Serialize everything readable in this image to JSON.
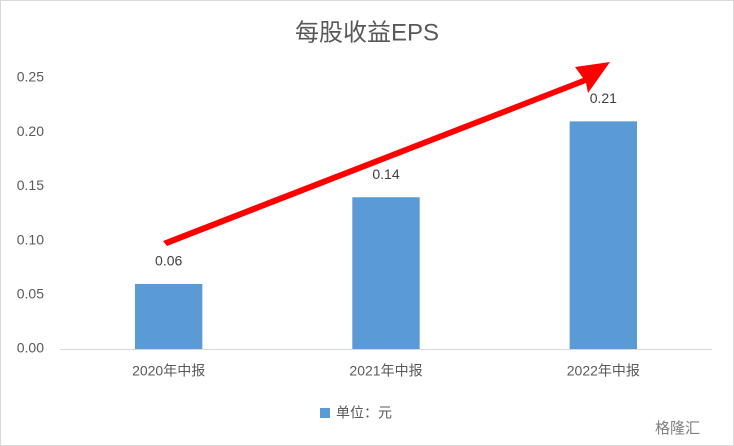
{
  "chart_data": {
    "type": "bar",
    "title": "每股收益EPS",
    "categories": [
      "2020年中报",
      "2021年中报",
      "2022年中报"
    ],
    "series": [
      {
        "name": "单位：元",
        "color": "#5b9bd5",
        "values": [
          0.06,
          0.14,
          0.21
        ]
      }
    ],
    "ylim": [
      0,
      0.25
    ],
    "yticks": [
      {
        "value": 0,
        "label": "0.00"
      },
      0.05,
      {
        "value": 0.1,
        "label": "0.10"
      },
      0.15,
      {
        "value": 0.2,
        "label": "0.20"
      },
      0.25
    ],
    "grid": false,
    "legend": "bottom"
  },
  "watermark": "格隆汇"
}
